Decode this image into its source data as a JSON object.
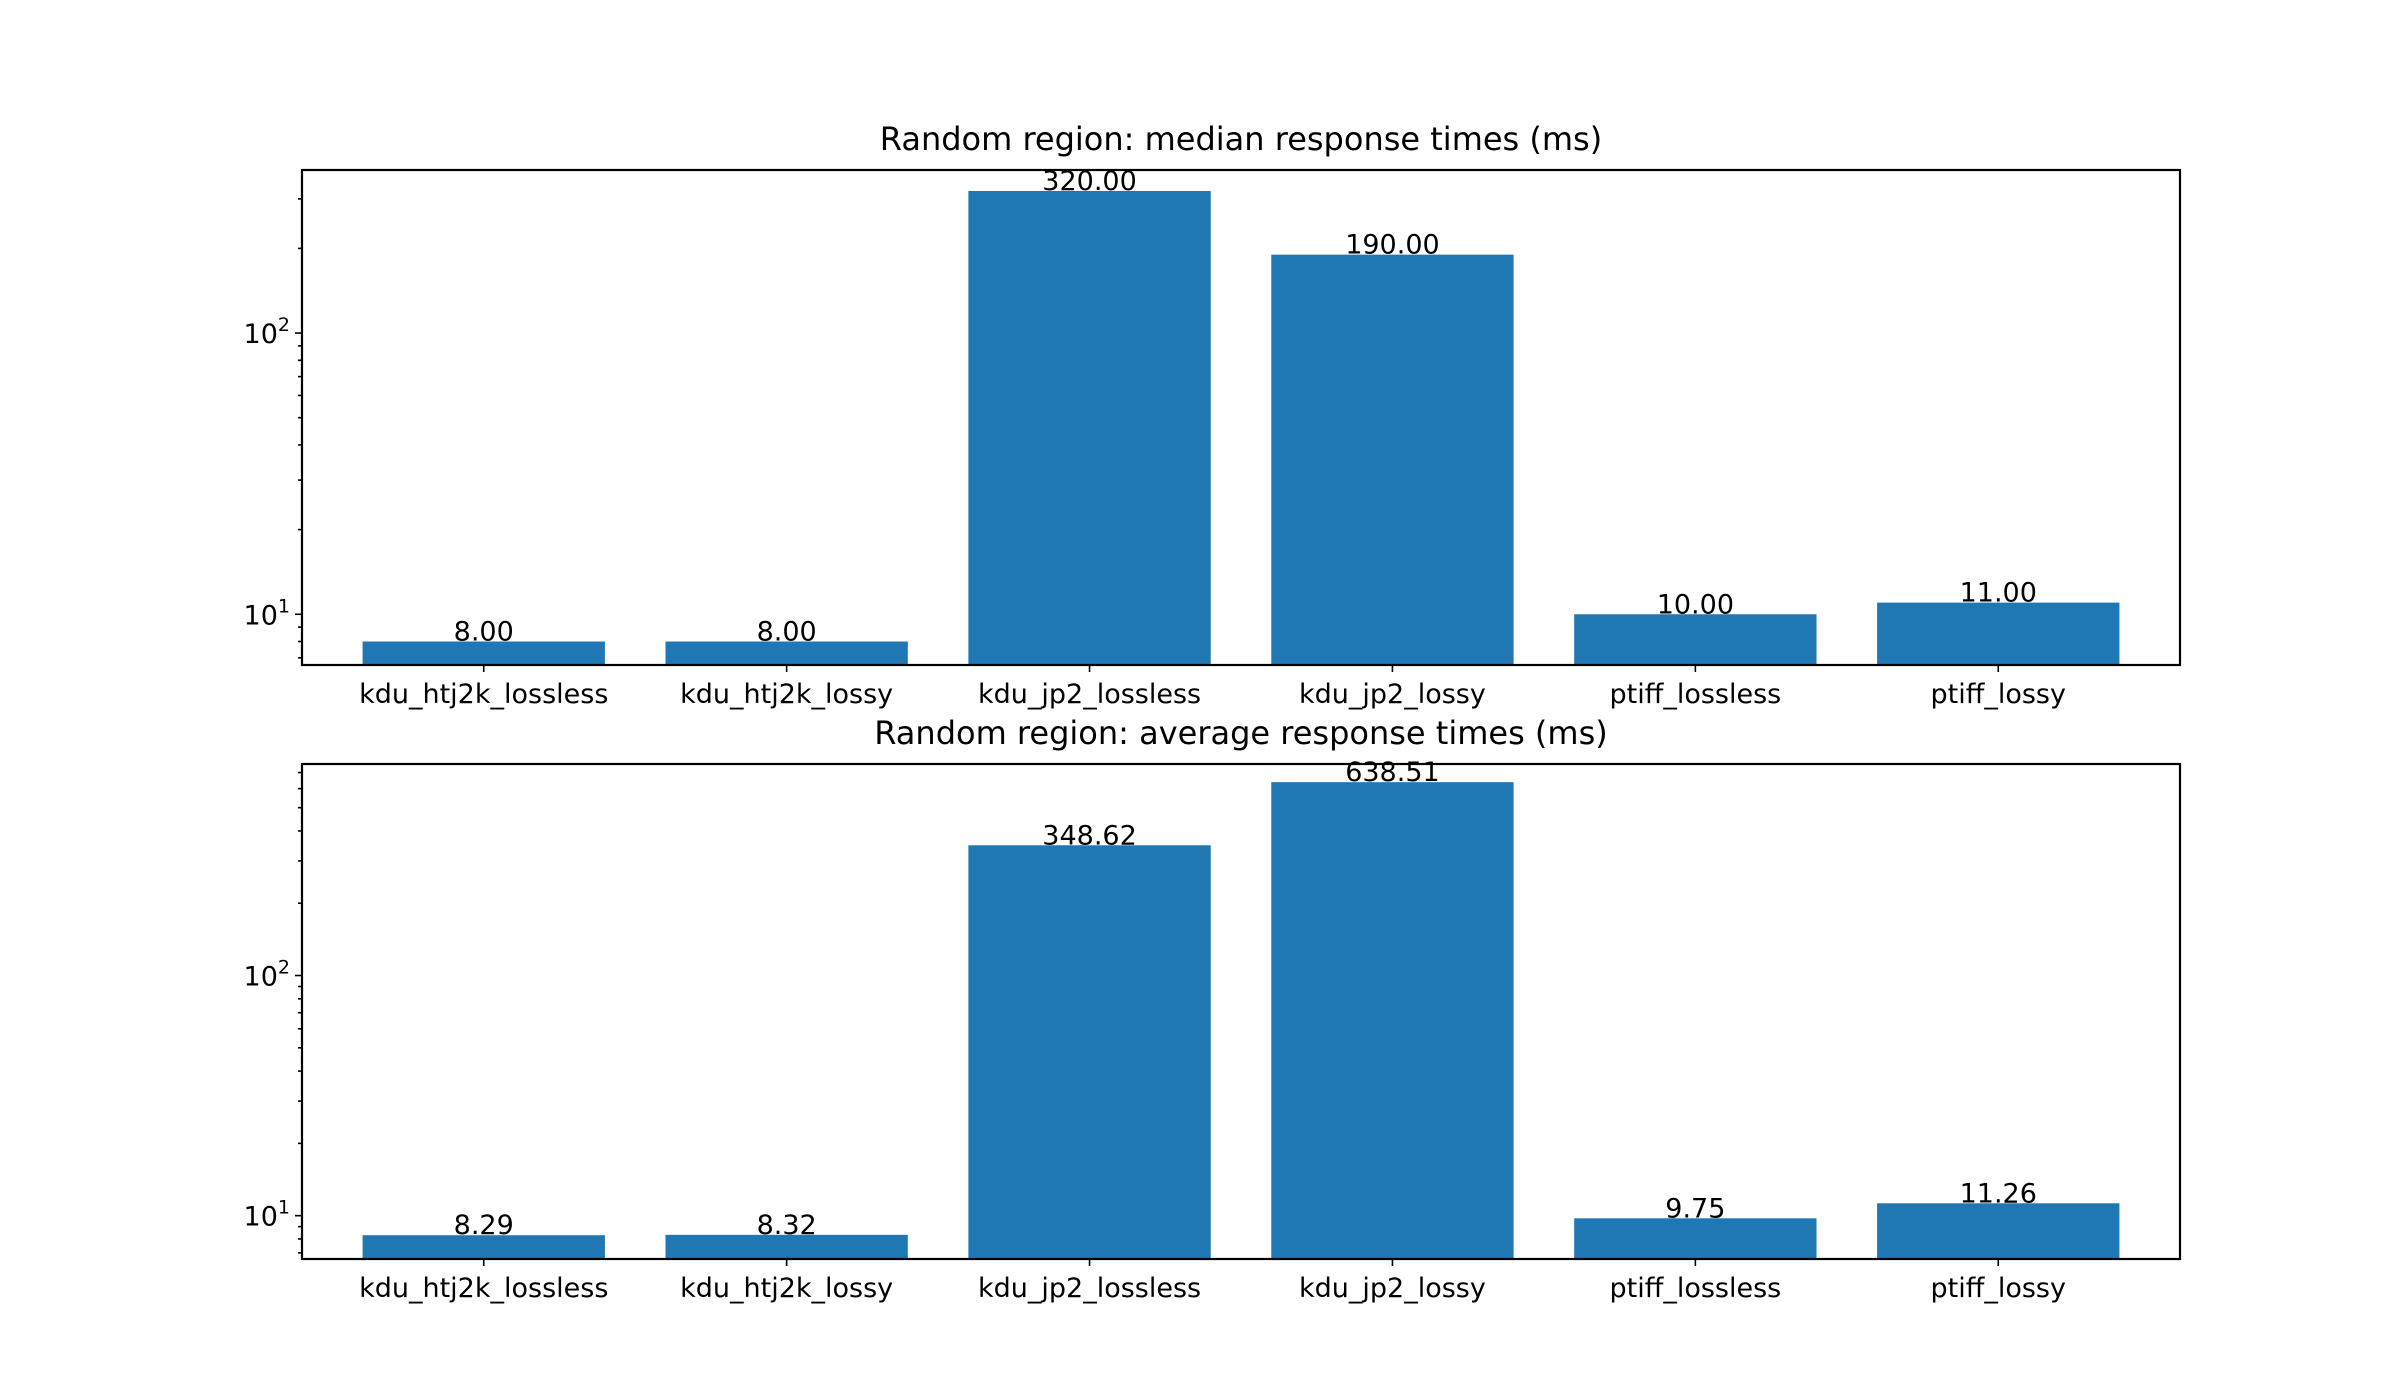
{
  "chart_data": [
    {
      "type": "bar",
      "title": "Random region: median response times (ms)",
      "xlabel": "",
      "ylabel": "",
      "yscale": "log",
      "ylim": [
        6.6,
        380
      ],
      "categories": [
        "kdu_htj2k_lossless",
        "kdu_htj2k_lossy",
        "kdu_jp2_lossless",
        "kdu_jp2_lossy",
        "ptiff_lossless",
        "ptiff_lossy"
      ],
      "values": [
        8.0,
        8.0,
        320.0,
        190.0,
        10.0,
        11.0
      ],
      "value_labels": [
        "8.00",
        "8.00",
        "320.00",
        "190.00",
        "10.00",
        "11.00"
      ],
      "y_ticks": [
        {
          "value": 10,
          "base": "10",
          "exp": "1"
        },
        {
          "value": 100,
          "base": "10",
          "exp": "2"
        }
      ],
      "bar_color": "#1f77b4",
      "grid": false,
      "legend": "none"
    },
    {
      "type": "bar",
      "title": "Random region: average response times (ms)",
      "xlabel": "",
      "ylabel": "",
      "yscale": "log",
      "ylim": [
        6.6,
        760
      ],
      "categories": [
        "kdu_htj2k_lossless",
        "kdu_htj2k_lossy",
        "kdu_jp2_lossless",
        "kdu_jp2_lossy",
        "ptiff_lossless",
        "ptiff_lossy"
      ],
      "values": [
        8.29,
        8.32,
        348.62,
        638.51,
        9.75,
        11.26
      ],
      "value_labels": [
        "8.29",
        "8.32",
        "348.62",
        "638.51",
        "9.75",
        "11.26"
      ],
      "y_ticks": [
        {
          "value": 10,
          "base": "10",
          "exp": "1"
        },
        {
          "value": 100,
          "base": "10",
          "exp": "2"
        }
      ],
      "bar_color": "#1f77b4",
      "grid": false,
      "legend": "none"
    }
  ]
}
